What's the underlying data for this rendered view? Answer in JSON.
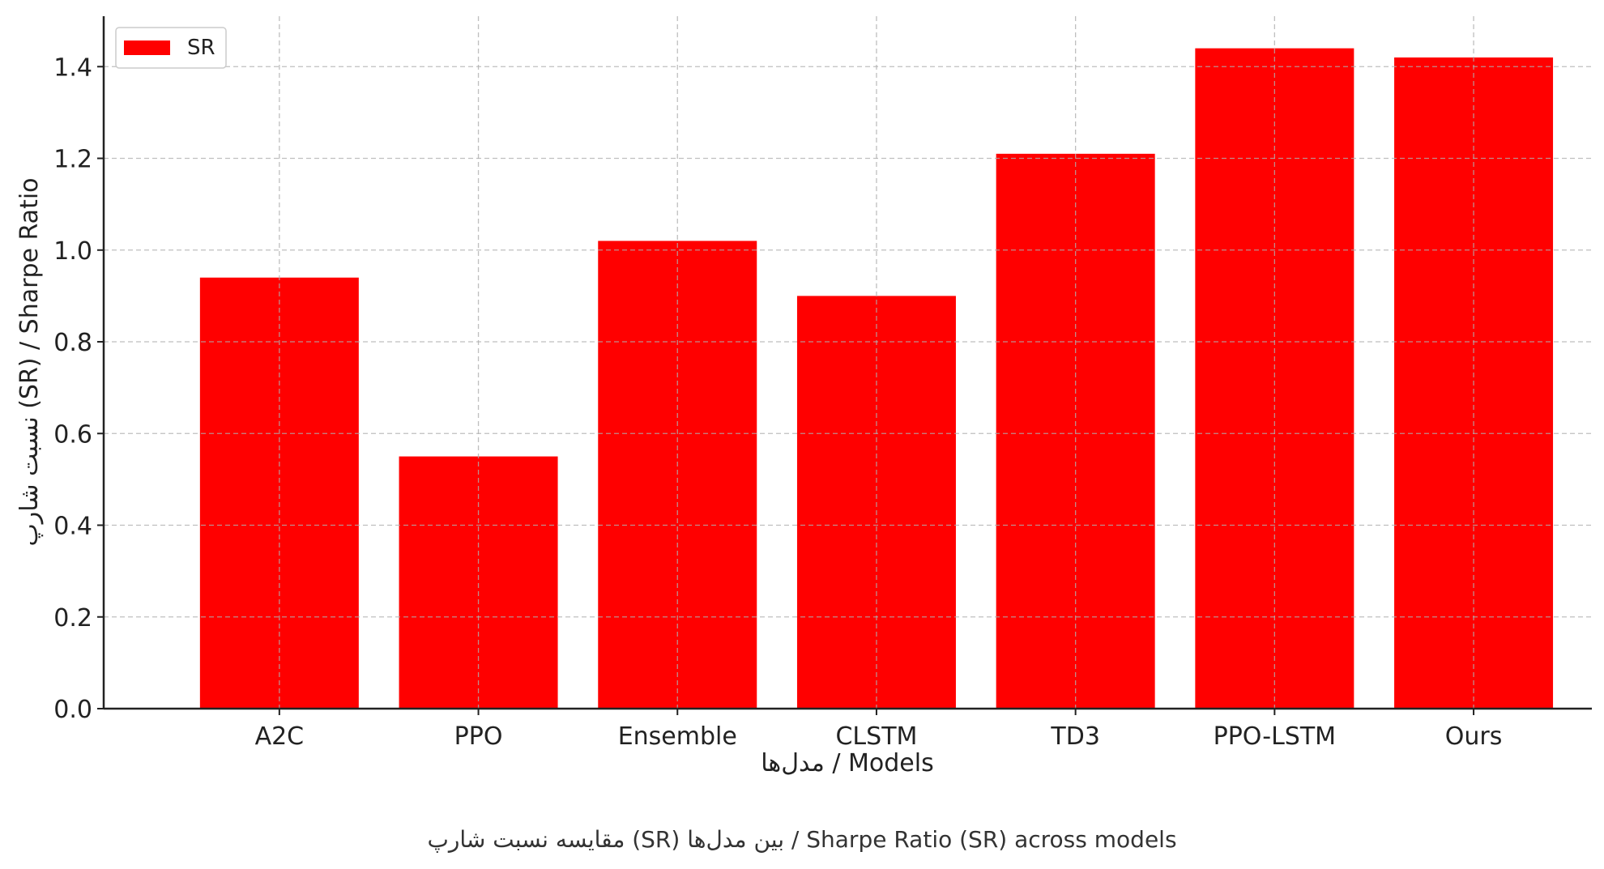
{
  "chart_data": {
    "type": "bar",
    "categories": [
      "A2C",
      "PPO",
      "Ensemble",
      "CLSTM",
      "TD3",
      "PPO-LSTM",
      "Ours"
    ],
    "series": [
      {
        "name": "SR",
        "values": [
          0.94,
          0.55,
          1.02,
          0.9,
          1.21,
          1.44,
          1.42
        ],
        "color": "#ff0000"
      }
    ],
    "xlabel": "مدل‌ها / Models",
    "ylabel": "نسبت شارپ (SR) / Sharpe Ratio",
    "caption": "مقایسه نسبت شارپ (SR) بین مدل‌ها / Sharpe Ratio (SR) across models",
    "ylim": [
      0,
      1.51
    ],
    "yticks": [
      "0.0",
      "0.2",
      "0.4",
      "0.6",
      "0.8",
      "1.0",
      "1.2",
      "1.4"
    ],
    "grid": true,
    "legend": {
      "position": "top-left",
      "label": "SR"
    }
  }
}
